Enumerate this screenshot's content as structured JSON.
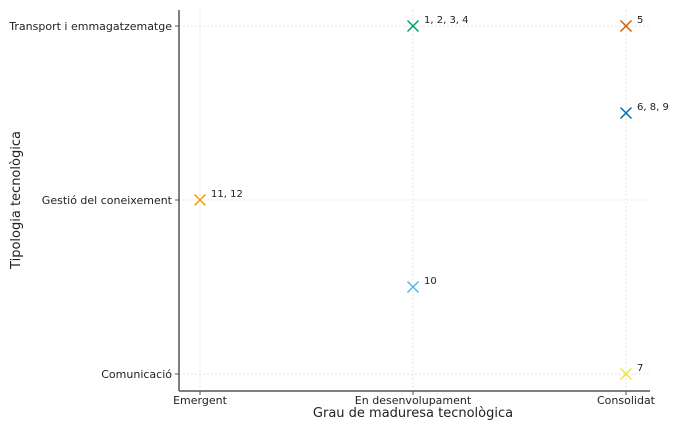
{
  "chart_data": {
    "type": "scatter",
    "title": "",
    "xlabel": "Grau de maduresa tecnològica",
    "ylabel": "Tipologia tecnològica",
    "x_categories": [
      "Emergent",
      "En desenvolupament",
      "Consolidat"
    ],
    "y_categories": [
      "Comunicació",
      "Gestió del coneixement",
      "Transport i emmagatzematge"
    ],
    "grid": true,
    "marker": "x",
    "points": [
      {
        "x": "En desenvolupament",
        "y": 2,
        "label": "1, 2, 3, 4",
        "color": "#009E73"
      },
      {
        "x": "Consolidat",
        "y": 2,
        "label": "5",
        "color": "#D55E00"
      },
      {
        "x": "Consolidat",
        "y": 1.5,
        "label": "6, 8, 9",
        "color": "#0072B2"
      },
      {
        "x": "Emergent",
        "y": 1,
        "label": "11, 12",
        "color": "#E69F00"
      },
      {
        "x": "En desenvolupament",
        "y": 0.5,
        "label": "10",
        "color": "#56B4E9"
      },
      {
        "x": "Consolidat",
        "y": 0,
        "label": "7",
        "color": "#F0E442"
      }
    ]
  }
}
